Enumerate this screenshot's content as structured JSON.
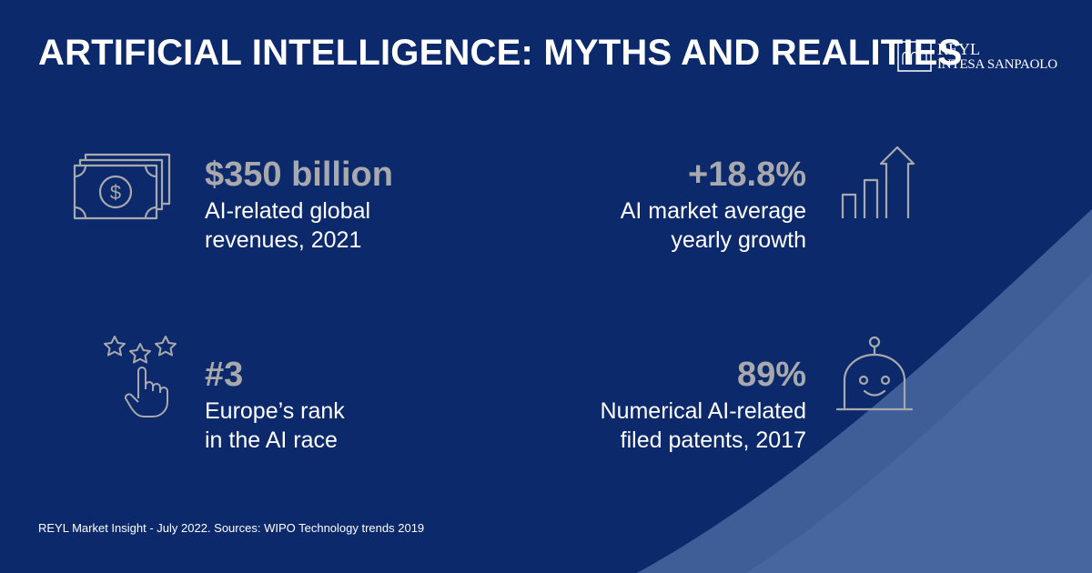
{
  "header": {
    "title": "ARTIFICIAL INTELLIGENCE: MYTHS AND REALITIES",
    "logo_line1": "REYL",
    "logo_line2": "INTESA SANPAOLO"
  },
  "stats": [
    {
      "value": "$350 billion",
      "desc_line1": "AI-related global",
      "desc_line2": "revenues, 2021",
      "icon": "money-bill-icon"
    },
    {
      "value": "+18.8%",
      "desc_line1": "AI market average",
      "desc_line2": "yearly growth",
      "icon": "growth-chart-icon"
    },
    {
      "value": "#3",
      "desc_line1": "Europe’s rank",
      "desc_line2": "in the AI race",
      "icon": "stars-rating-hand-icon"
    },
    {
      "value": "89%",
      "desc_line1": "Numerical AI-related",
      "desc_line2": "filed patents, 2017",
      "icon": "robot-icon"
    }
  ],
  "footer": {
    "text": "REYL Market Insight - July 2022. Sources: WIPO Technology trends 2019"
  },
  "colors": {
    "background": "#0c2a6b",
    "curve": "#4a6aa3",
    "value_gray": "#a8a9ad",
    "text": "#ffffff"
  }
}
